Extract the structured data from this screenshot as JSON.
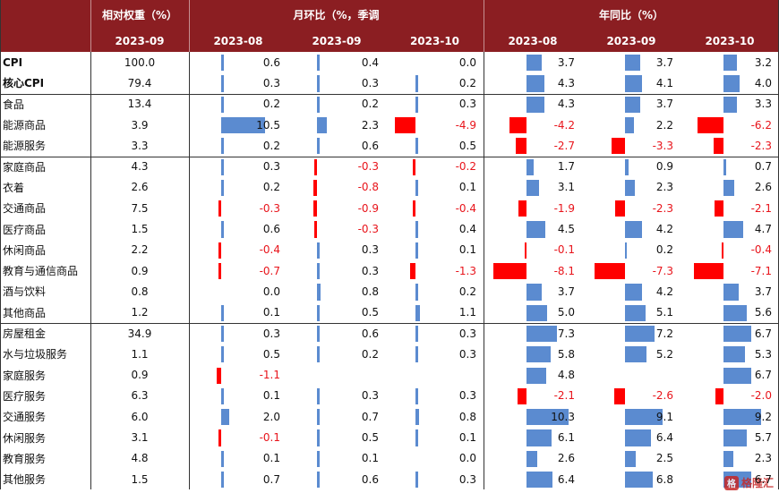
{
  "header": {
    "weight_title": "相对权重（%）",
    "mom_title": "月环比（%，季调",
    "yoy_title": "年同比（%）",
    "weight_period": "2023-09",
    "mom_periods": [
      "2023-08",
      "2023-09",
      "2023-10"
    ],
    "yoy_periods": [
      "2023-08",
      "2023-09",
      "2023-10"
    ]
  },
  "colors": {
    "header_bg": "#8b1e22",
    "positive_bar": "#5b8bd0",
    "negative_bar": "#ff0000",
    "negative_text": "#e8141b"
  },
  "groups": [
    {
      "rows": [
        {
          "label": "CPI",
          "bold": true,
          "weight": "100.0",
          "mom": [
            "0.6",
            "0.4",
            "0.0"
          ],
          "yoy": [
            "3.7",
            "3.7",
            "3.2"
          ]
        },
        {
          "label": "核心CPI",
          "bold": true,
          "weight": "79.4",
          "mom": [
            "0.3",
            "0.3",
            "0.2"
          ],
          "yoy": [
            "4.3",
            "4.1",
            "4.0"
          ]
        }
      ]
    },
    {
      "rows": [
        {
          "label": "食品",
          "weight": "13.4",
          "mom": [
            "0.2",
            "0.2",
            "0.3"
          ],
          "yoy": [
            "4.3",
            "3.7",
            "3.3"
          ]
        },
        {
          "label": "能源商品",
          "weight": "3.9",
          "mom": [
            "10.5",
            "2.3",
            "-4.9"
          ],
          "yoy": [
            "-4.2",
            "2.2",
            "-6.2"
          ]
        },
        {
          "label": "能源服务",
          "weight": "3.3",
          "mom": [
            "0.2",
            "0.6",
            "0.5"
          ],
          "yoy": [
            "-2.7",
            "-3.3",
            "-2.3"
          ]
        }
      ]
    },
    {
      "rows": [
        {
          "label": "家庭商品",
          "weight": "4.3",
          "mom": [
            "0.3",
            "-0.3",
            "-0.2"
          ],
          "yoy": [
            "1.7",
            "0.9",
            "0.7"
          ]
        },
        {
          "label": "衣着",
          "weight": "2.6",
          "mom": [
            "0.2",
            "-0.8",
            "0.1"
          ],
          "yoy": [
            "3.1",
            "2.3",
            "2.6"
          ]
        },
        {
          "label": "交通商品",
          "weight": "7.5",
          "mom": [
            "-0.3",
            "-0.9",
            "-0.4"
          ],
          "yoy": [
            "-1.9",
            "-2.3",
            "-2.1"
          ]
        },
        {
          "label": "医疗商品",
          "weight": "1.5",
          "mom": [
            "0.6",
            "-0.3",
            "0.4"
          ],
          "yoy": [
            "4.5",
            "4.2",
            "4.7"
          ]
        },
        {
          "label": "休闲商品",
          "weight": "2.2",
          "mom": [
            "-0.4",
            "0.3",
            "0.1"
          ],
          "yoy": [
            "-0.1",
            "0.2",
            "-0.4"
          ]
        },
        {
          "label": "教育与通信商品",
          "weight": "0.9",
          "mom": [
            "-0.7",
            "0.3",
            "-1.3"
          ],
          "yoy": [
            "-8.1",
            "-7.3",
            "-7.1"
          ]
        },
        {
          "label": "酒与饮料",
          "weight": "0.8",
          "mom": [
            "0.0",
            "0.8",
            "0.2"
          ],
          "yoy": [
            "3.7",
            "4.2",
            "3.7"
          ]
        },
        {
          "label": "其他商品",
          "weight": "1.2",
          "mom": [
            "0.1",
            "0.5",
            "1.1"
          ],
          "yoy": [
            "5.0",
            "5.1",
            "5.6"
          ]
        }
      ]
    },
    {
      "rows": [
        {
          "label": "房屋租金",
          "weight": "34.9",
          "mom": [
            "0.3",
            "0.6",
            "0.3"
          ],
          "yoy": [
            "7.3",
            "7.2",
            "6.7"
          ]
        },
        {
          "label": "水与垃圾服务",
          "weight": "1.1",
          "mom": [
            "0.5",
            "0.2",
            "0.3"
          ],
          "yoy": [
            "5.8",
            "5.2",
            "5.3"
          ]
        },
        {
          "label": "家庭服务",
          "weight": "0.9",
          "mom": [
            "-1.1",
            "",
            ""
          ],
          "yoy": [
            "4.8",
            "",
            "6.7"
          ]
        },
        {
          "label": "医疗服务",
          "weight": "6.3",
          "mom": [
            "0.1",
            "0.3",
            "0.3"
          ],
          "yoy": [
            "-2.1",
            "-2.6",
            "-2.0"
          ]
        },
        {
          "label": "交通服务",
          "weight": "6.0",
          "mom": [
            "2.0",
            "0.7",
            "0.8"
          ],
          "yoy": [
            "10.3",
            "9.1",
            "9.2"
          ]
        },
        {
          "label": "休闲服务",
          "weight": "3.1",
          "mom": [
            "-0.1",
            "0.5",
            "0.1"
          ],
          "yoy": [
            "6.1",
            "6.4",
            "5.7"
          ]
        },
        {
          "label": "教育服务",
          "weight": "4.8",
          "mom": [
            "0.1",
            "0.1",
            "0.0"
          ],
          "yoy": [
            "2.6",
            "2.5",
            "2.3"
          ]
        },
        {
          "label": "其他服务",
          "weight": "1.5",
          "mom": [
            "0.7",
            "0.6",
            "0.3"
          ],
          "yoy": [
            "6.4",
            "6.8",
            "6.7"
          ]
        }
      ]
    }
  ],
  "watermark": {
    "text": "格隆汇",
    "logo_glyph": "格"
  }
}
